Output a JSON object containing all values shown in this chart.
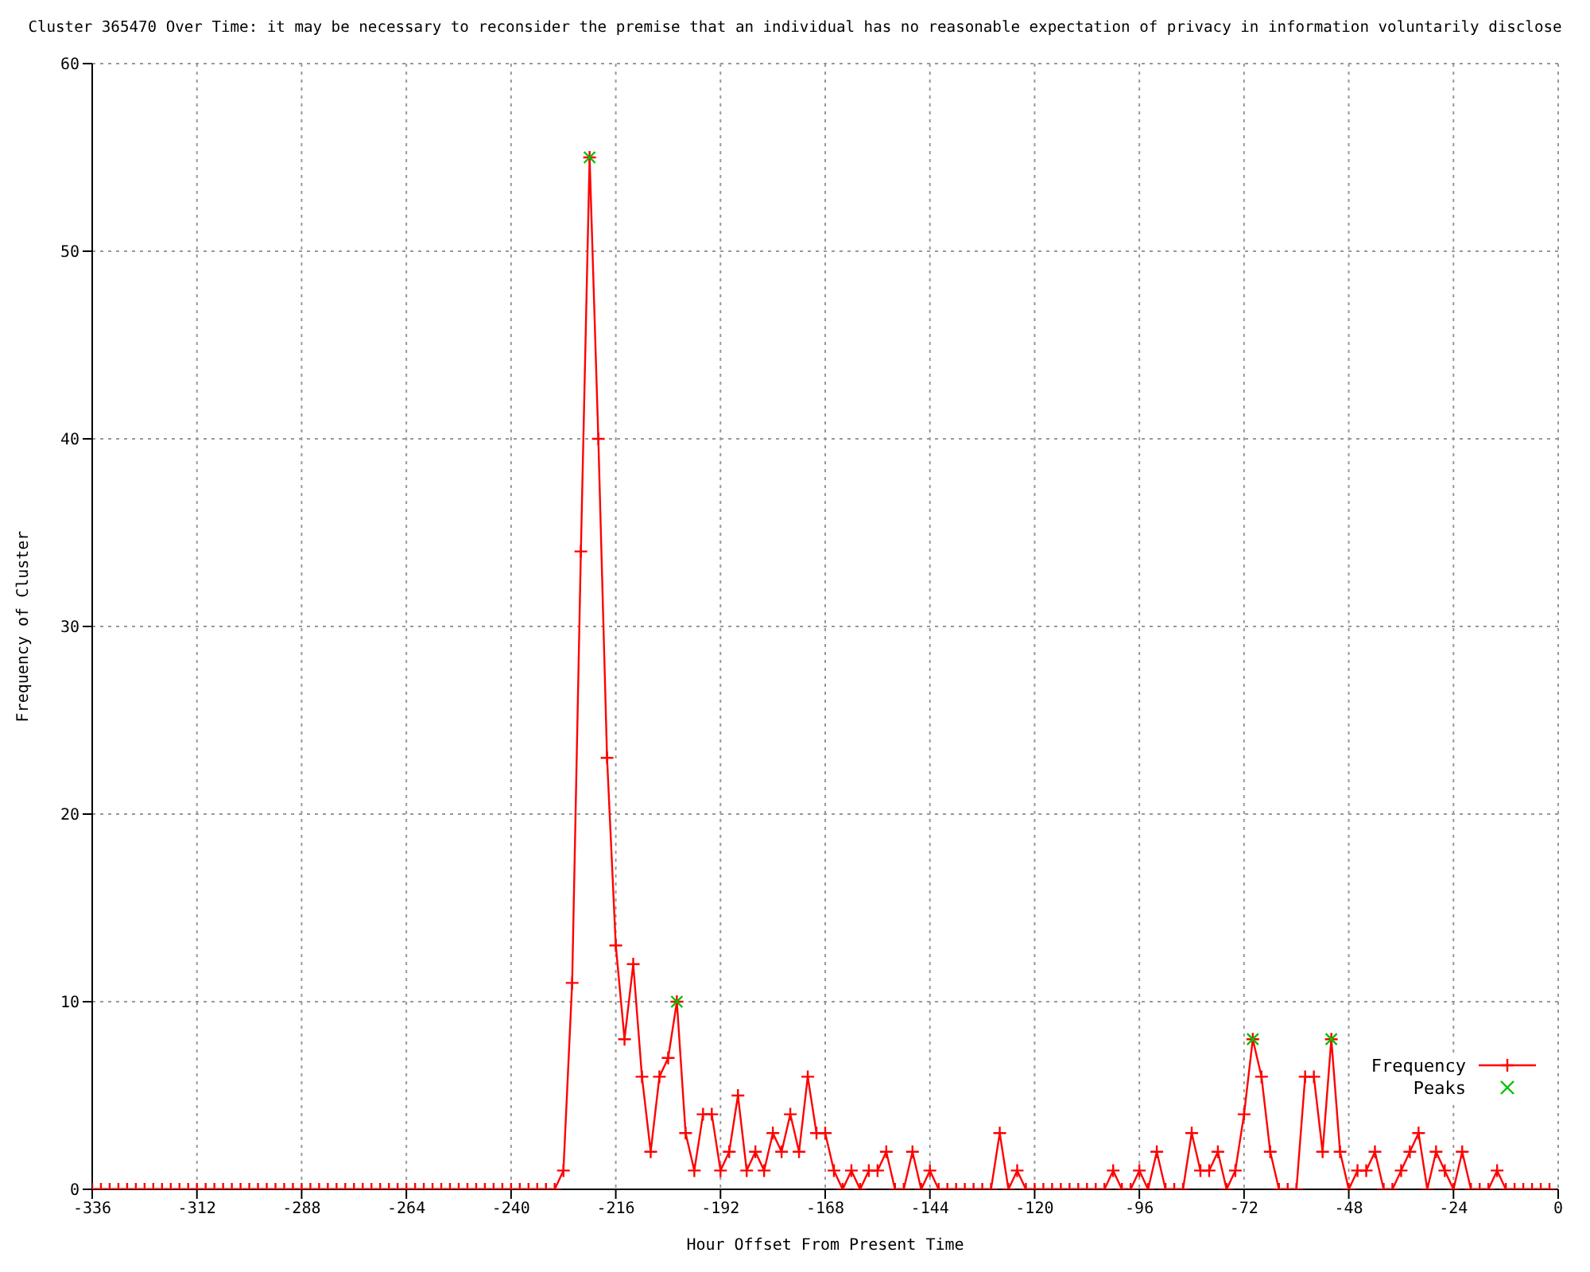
{
  "chart_data": {
    "type": "line",
    "title": "Cluster 365470 Over Time: it may be necessary to reconsider the premise that an individual has no reasonable expectation of privacy in information voluntarily disclose",
    "xlabel": "Hour Offset From Present Time",
    "ylabel": "Frequency of Cluster",
    "x": [
      -336,
      -334,
      -332,
      -330,
      -328,
      -326,
      -324,
      -322,
      -320,
      -318,
      -316,
      -314,
      -312,
      -310,
      -308,
      -306,
      -304,
      -302,
      -300,
      -298,
      -296,
      -294,
      -292,
      -290,
      -288,
      -286,
      -284,
      -282,
      -280,
      -278,
      -276,
      -274,
      -272,
      -270,
      -268,
      -266,
      -264,
      -262,
      -260,
      -258,
      -256,
      -254,
      -252,
      -250,
      -248,
      -246,
      -244,
      -242,
      -240,
      -238,
      -236,
      -234,
      -232,
      -230,
      -228,
      -226,
      -224,
      -222,
      -220,
      -218,
      -216,
      -214,
      -212,
      -210,
      -208,
      -206,
      -204,
      -202,
      -200,
      -198,
      -196,
      -194,
      -192,
      -190,
      -188,
      -186,
      -184,
      -182,
      -180,
      -178,
      -176,
      -174,
      -172,
      -170,
      -168,
      -166,
      -164,
      -162,
      -160,
      -158,
      -156,
      -154,
      -152,
      -150,
      -148,
      -146,
      -144,
      -142,
      -140,
      -138,
      -136,
      -134,
      -132,
      -130,
      -128,
      -126,
      -124,
      -122,
      -120,
      -118,
      -116,
      -114,
      -112,
      -110,
      -108,
      -106,
      -104,
      -102,
      -100,
      -98,
      -96,
      -94,
      -92,
      -90,
      -88,
      -86,
      -84,
      -82,
      -80,
      -78,
      -76,
      -74,
      -72,
      -70,
      -68,
      -66,
      -64,
      -62,
      -60,
      -58,
      -56,
      -54,
      -52,
      -50,
      -48,
      -46,
      -44,
      -42,
      -40,
      -38,
      -36,
      -34,
      -32,
      -30,
      -28,
      -26,
      -24,
      -22,
      -20,
      -18,
      -16,
      -14,
      -12,
      -10,
      -8,
      -6,
      -4,
      -2
    ],
    "series": [
      {
        "name": "Frequency",
        "color": "#ff0000",
        "marker": "cross",
        "values": [
          0,
          0,
          0,
          0,
          0,
          0,
          0,
          0,
          0,
          0,
          0,
          0,
          0,
          0,
          0,
          0,
          0,
          0,
          0,
          0,
          0,
          0,
          0,
          0,
          0,
          0,
          0,
          0,
          0,
          0,
          0,
          0,
          0,
          0,
          0,
          0,
          0,
          0,
          0,
          0,
          0,
          0,
          0,
          0,
          0,
          0,
          0,
          0,
          0,
          0,
          0,
          0,
          0,
          0,
          1,
          11,
          34,
          55,
          40,
          23,
          13,
          8,
          12,
          6,
          2,
          6,
          7,
          10,
          3,
          1,
          4,
          4,
          1,
          2,
          5,
          1,
          2,
          1,
          3,
          2,
          4,
          2,
          6,
          3,
          3,
          1,
          0,
          1,
          0,
          1,
          1,
          2,
          0,
          0,
          2,
          0,
          1,
          0,
          0,
          0,
          0,
          0,
          0,
          0,
          3,
          0,
          1,
          0,
          0,
          0,
          0,
          0,
          0,
          0,
          0,
          0,
          0,
          1,
          0,
          0,
          1,
          0,
          2,
          0,
          0,
          0,
          3,
          1,
          1,
          2,
          0,
          1,
          4,
          8,
          6,
          2,
          0,
          0,
          0,
          6,
          6,
          2,
          8,
          2,
          0,
          1,
          1,
          2,
          0,
          0,
          1,
          2,
          3,
          0,
          2,
          1,
          0,
          2,
          0,
          0,
          0,
          1,
          0,
          0,
          0,
          0,
          0,
          0
        ]
      },
      {
        "name": "Peaks",
        "type": "scatter",
        "color": "#00c000",
        "marker": "cross",
        "x": [
          -222,
          -202,
          -70,
          -52
        ],
        "values": [
          55,
          10,
          8,
          8
        ]
      }
    ],
    "xlim": [
      -336,
      0
    ],
    "xticks": [
      -336,
      -312,
      -288,
      -264,
      -240,
      -216,
      -192,
      -168,
      -144,
      -120,
      -96,
      -72,
      -48,
      -24,
      0
    ],
    "ylim": [
      0,
      60
    ],
    "yticks": [
      0,
      10,
      20,
      30,
      40,
      50,
      60
    ],
    "grid": true,
    "legend": "bottom right"
  }
}
